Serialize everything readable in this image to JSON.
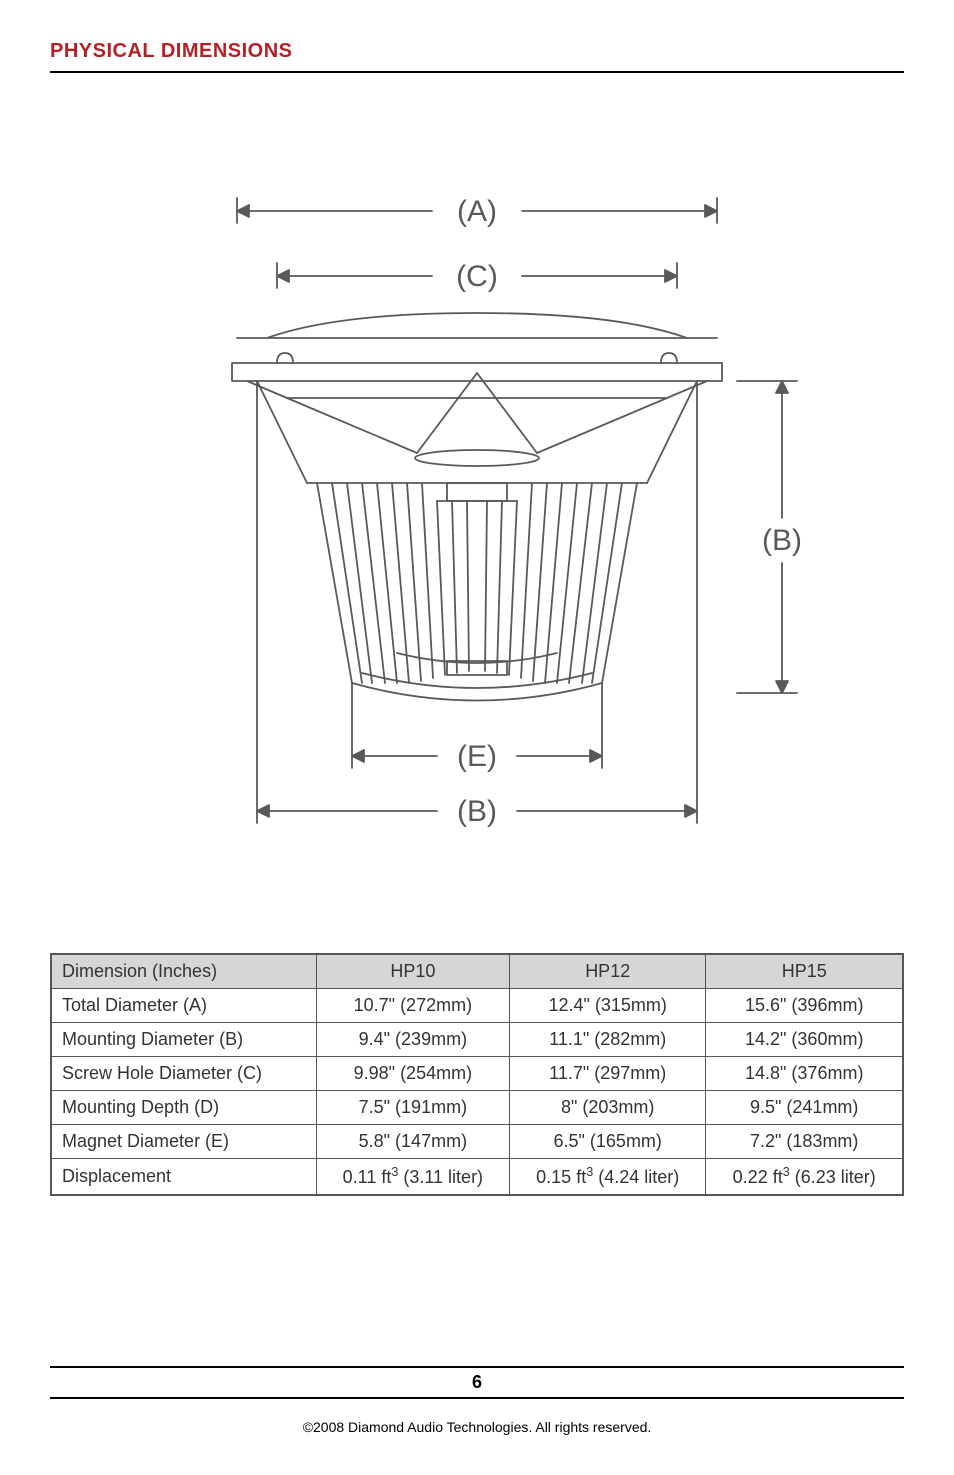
{
  "title": "PHYSICAL DIMENSIONS",
  "title_color": "#b42025",
  "diagram": {
    "labels": {
      "A": "(A)",
      "B": "(B)",
      "C": "(C)",
      "E": "(E)"
    },
    "stroke_color": "#58595b",
    "stroke_width": 1.8,
    "label_fontsize": 30,
    "label_fontfamily": "Arial"
  },
  "table": {
    "header_bg": "#d6d6d6",
    "border_color": "#555555",
    "columns": [
      "Dimension (Inches)",
      "HP10",
      "HP12",
      "HP15"
    ],
    "rows": [
      {
        "label": "Total Diameter (A)",
        "hp10": "10.7\" (272mm)",
        "hp12": "12.4\" (315mm)",
        "hp15": "15.6\" (396mm)"
      },
      {
        "label": "Mounting Diameter (B)",
        "hp10": "9.4\" (239mm)",
        "hp12": "11.1\" (282mm)",
        "hp15": "14.2\" (360mm)"
      },
      {
        "label": "Screw Hole Diameter (C)",
        "hp10": "9.98\" (254mm)",
        "hp12": "11.7\" (297mm)",
        "hp15": "14.8\" (376mm)"
      },
      {
        "label": "Mounting Depth (D)",
        "hp10": "7.5\" (191mm)",
        "hp12": "8\" (203mm)",
        "hp15": "9.5\" (241mm)"
      },
      {
        "label": "Magnet Diameter (E)",
        "hp10": "5.8\" (147mm)",
        "hp12": "6.5\" (165mm)",
        "hp15": "7.2\" (183mm)"
      },
      {
        "label": "Displacement",
        "hp10": "0.11 ft³ (3.11 liter)",
        "hp12": "0.15 ft³ (4.24 liter)",
        "hp15": "0.22 ft³ (6.23 liter)",
        "has_sup": true
      }
    ]
  },
  "footer": {
    "page_number": "6",
    "copyright": "©2008 Diamond Audio Technologies. All rights reserved."
  }
}
